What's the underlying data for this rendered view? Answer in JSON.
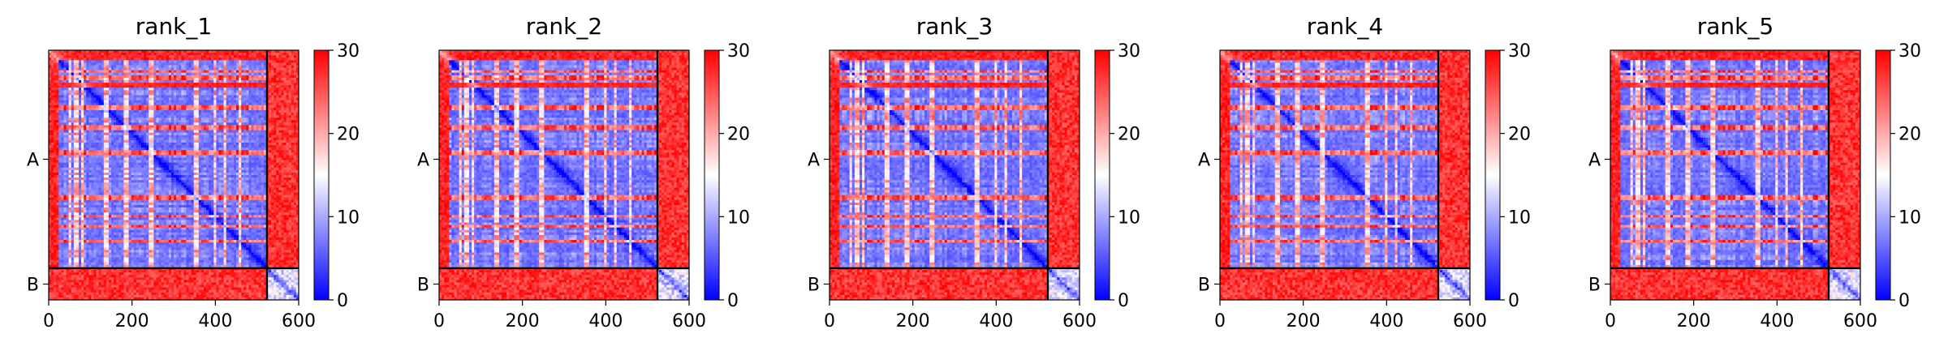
{
  "chart_data": [
    {
      "type": "heatmap",
      "title": "rank_1",
      "x_ticks": [
        "0",
        "200",
        "400",
        "600"
      ],
      "y_ticks": [
        "A",
        "B"
      ],
      "xlim": [
        0,
        600
      ],
      "chains": [
        {
          "label": "A",
          "length": 524
        },
        {
          "label": "B",
          "length": 76
        }
      ],
      "colorbar": {
        "min": 0,
        "max": 30,
        "ticks": [
          "0",
          "10",
          "20",
          "30"
        ]
      },
      "variant": 1
    },
    {
      "type": "heatmap",
      "title": "rank_2",
      "x_ticks": [
        "0",
        "200",
        "400",
        "600"
      ],
      "y_ticks": [
        "A",
        "B"
      ],
      "xlim": [
        0,
        600
      ],
      "chains": [
        {
          "label": "A",
          "length": 524
        },
        {
          "label": "B",
          "length": 76
        }
      ],
      "colorbar": {
        "min": 0,
        "max": 30,
        "ticks": [
          "0",
          "10",
          "20",
          "30"
        ]
      },
      "variant": 2
    },
    {
      "type": "heatmap",
      "title": "rank_3",
      "x_ticks": [
        "0",
        "200",
        "400",
        "600"
      ],
      "y_ticks": [
        "A",
        "B"
      ],
      "xlim": [
        0,
        600
      ],
      "chains": [
        {
          "label": "A",
          "length": 524
        },
        {
          "label": "B",
          "length": 76
        }
      ],
      "colorbar": {
        "min": 0,
        "max": 30,
        "ticks": [
          "0",
          "10",
          "20",
          "30"
        ]
      },
      "variant": 3
    },
    {
      "type": "heatmap",
      "title": "rank_4",
      "x_ticks": [
        "0",
        "200",
        "400",
        "600"
      ],
      "y_ticks": [
        "A",
        "B"
      ],
      "xlim": [
        0,
        600
      ],
      "chains": [
        {
          "label": "A",
          "length": 524
        },
        {
          "label": "B",
          "length": 76
        }
      ],
      "colorbar": {
        "min": 0,
        "max": 30,
        "ticks": [
          "0",
          "10",
          "20",
          "30"
        ]
      },
      "variant": 4
    },
    {
      "type": "heatmap",
      "title": "rank_5",
      "x_ticks": [
        "0",
        "200",
        "400",
        "600"
      ],
      "y_ticks": [
        "A",
        "B"
      ],
      "xlim": [
        0,
        600
      ],
      "chains": [
        {
          "label": "A",
          "length": 524
        },
        {
          "label": "B",
          "length": 76
        }
      ],
      "colorbar": {
        "min": 0,
        "max": 30,
        "ticks": [
          "0",
          "10",
          "20",
          "30"
        ]
      },
      "variant": 5
    }
  ],
  "colors": {
    "low": "#0000ff",
    "mid": "#ffffff",
    "high": "#ff0000",
    "boundary": "#000000"
  }
}
